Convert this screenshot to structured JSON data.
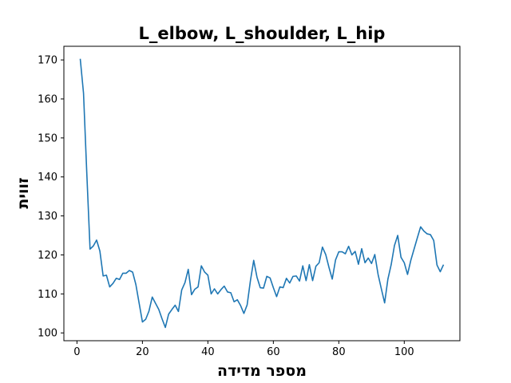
{
  "chart_data": {
    "type": "line",
    "title": "L_elbow, L_shoulder, L_hip",
    "xlabel": "מספר מדידה",
    "ylabel": "זווית",
    "xlim": [
      -4,
      117
    ],
    "ylim": [
      98,
      173.5
    ],
    "xticks": [
      0,
      20,
      40,
      60,
      80,
      100
    ],
    "yticks": [
      100,
      110,
      120,
      130,
      140,
      150,
      160,
      170
    ],
    "grid": false,
    "legend": "none",
    "series": [
      {
        "color": "#1f77b4",
        "x": [
          1,
          2,
          3,
          4,
          5,
          6,
          7,
          8,
          9,
          10,
          11,
          12,
          13,
          14,
          15,
          16,
          17,
          18,
          19,
          20,
          21,
          22,
          23,
          24,
          25,
          26,
          27,
          28,
          29,
          30,
          31,
          32,
          33,
          34,
          35,
          36,
          37,
          38,
          39,
          40,
          41,
          42,
          43,
          44,
          45,
          46,
          47,
          48,
          49,
          50,
          51,
          52,
          53,
          54,
          55,
          56,
          57,
          58,
          59,
          60,
          61,
          62,
          63,
          64,
          65,
          66,
          67,
          68,
          69,
          70,
          71,
          72,
          73,
          74,
          75,
          76,
          77,
          78,
          79,
          80,
          81,
          82,
          83,
          84,
          85,
          86,
          87,
          88,
          89,
          90,
          91,
          92,
          93,
          94,
          95,
          96,
          97,
          98,
          99,
          100,
          101,
          102,
          103,
          104,
          105,
          106,
          107,
          108,
          109,
          110,
          111,
          112
        ],
        "y": [
          170.3,
          161.5,
          141,
          121.5,
          122.3,
          123.8,
          121,
          114.6,
          114.8,
          111.8,
          112.7,
          114,
          113.7,
          115.3,
          115.3,
          116,
          115.6,
          112.4,
          107.6,
          102.8,
          103.5,
          105.6,
          109.2,
          107.6,
          106,
          103.6,
          101.4,
          104.8,
          106,
          107.1,
          105.5,
          111,
          112.9,
          116.3,
          109.8,
          111.2,
          111.8,
          117.2,
          115.6,
          114.8,
          110,
          111.3,
          110,
          111.1,
          112,
          110.5,
          110.3,
          108,
          108.5,
          107,
          105,
          107.2,
          113.4,
          118.6,
          114.3,
          111.6,
          111.5,
          114.5,
          114.1,
          111.6,
          109.3,
          111.8,
          111.6,
          114,
          112.8,
          114.5,
          114.6,
          113.3,
          117.2,
          113.4,
          117.5,
          113.4,
          117.1,
          118,
          122,
          120.1,
          116.8,
          113.8,
          118.7,
          120.8,
          120.8,
          120.3,
          122.2,
          120,
          120.9,
          117.6,
          121.6,
          118,
          119.2,
          117.8,
          120.1,
          115,
          111.3,
          107.7,
          113.8,
          117.5,
          122.4,
          125,
          119.4,
          118,
          115,
          118.6,
          121.5,
          124.4,
          127.2,
          126.1,
          125.4,
          125.2,
          123.7,
          117.4,
          115.7,
          117.5
        ]
      }
    ]
  }
}
